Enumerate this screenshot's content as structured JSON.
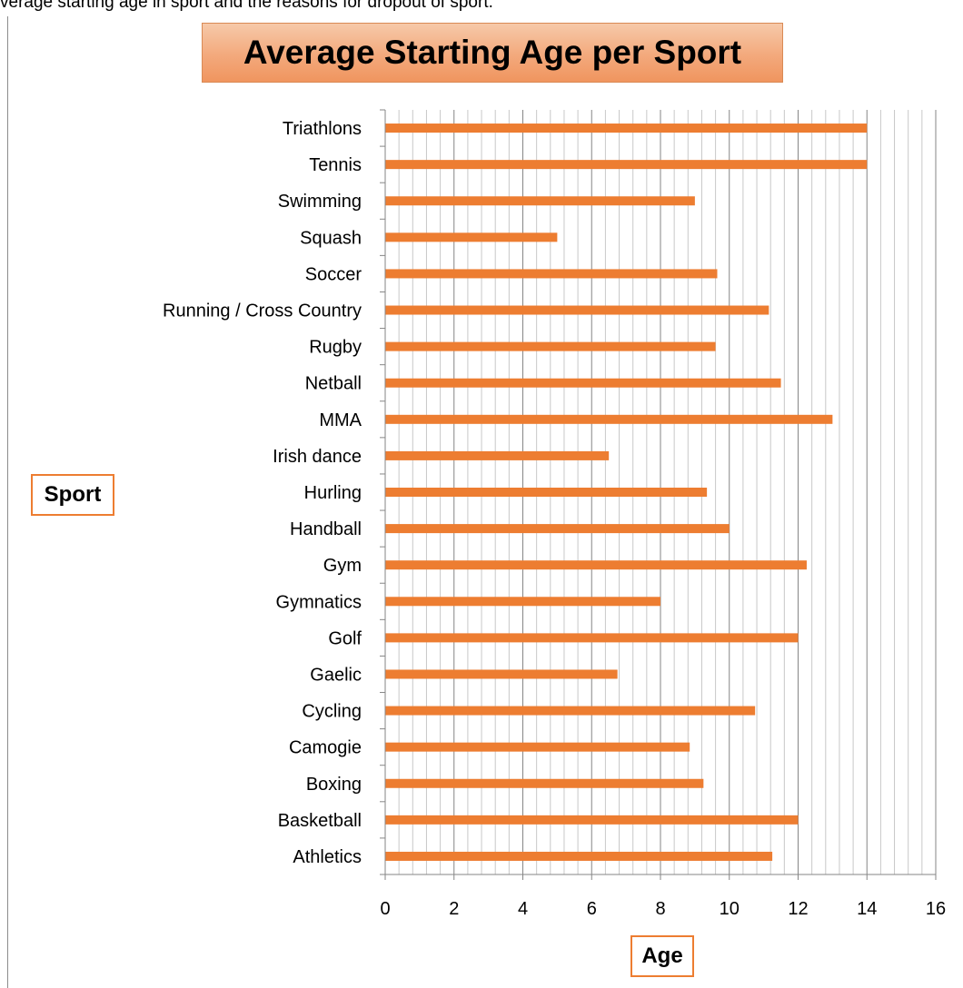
{
  "page": {
    "caption": "verage starting age in sport and the reasons for dropout of sport."
  },
  "chart_data": {
    "type": "bar",
    "orientation": "horizontal",
    "title": "Average Starting Age per Sport",
    "xlabel": "Age",
    "ylabel": "Sport",
    "categories": [
      "Athletics",
      "Basketball",
      "Boxing",
      "Camogie",
      "Cycling",
      "Gaelic",
      "Golf",
      "Gymnatics",
      "Gym",
      "Handball",
      "Hurling",
      "Irish dance",
      "MMA",
      "Netball",
      "Rugby",
      "Running / Cross Country",
      "Soccer",
      "Squash",
      "Swimming",
      "Tennis",
      "Triathlons"
    ],
    "values": [
      11.25,
      12,
      9.25,
      8.85,
      10.75,
      6.75,
      12,
      8,
      12.25,
      10,
      9.35,
      6.5,
      13,
      11.5,
      9.6,
      11.15,
      9.65,
      5,
      9,
      14,
      14
    ],
    "xlim": [
      0,
      16
    ],
    "xticks": [
      0,
      2,
      4,
      6,
      8,
      10,
      12,
      14,
      16
    ],
    "xtick_labels": [
      "0",
      "2",
      "4",
      "6",
      "8",
      "10",
      "12",
      "14",
      "16"
    ],
    "minor_gridline_step": 0.4,
    "grid": true,
    "legend": "none",
    "bar_color": "#ed7d31",
    "major_grid_color": "#868686",
    "minor_grid_color": "#c8c8c8"
  }
}
